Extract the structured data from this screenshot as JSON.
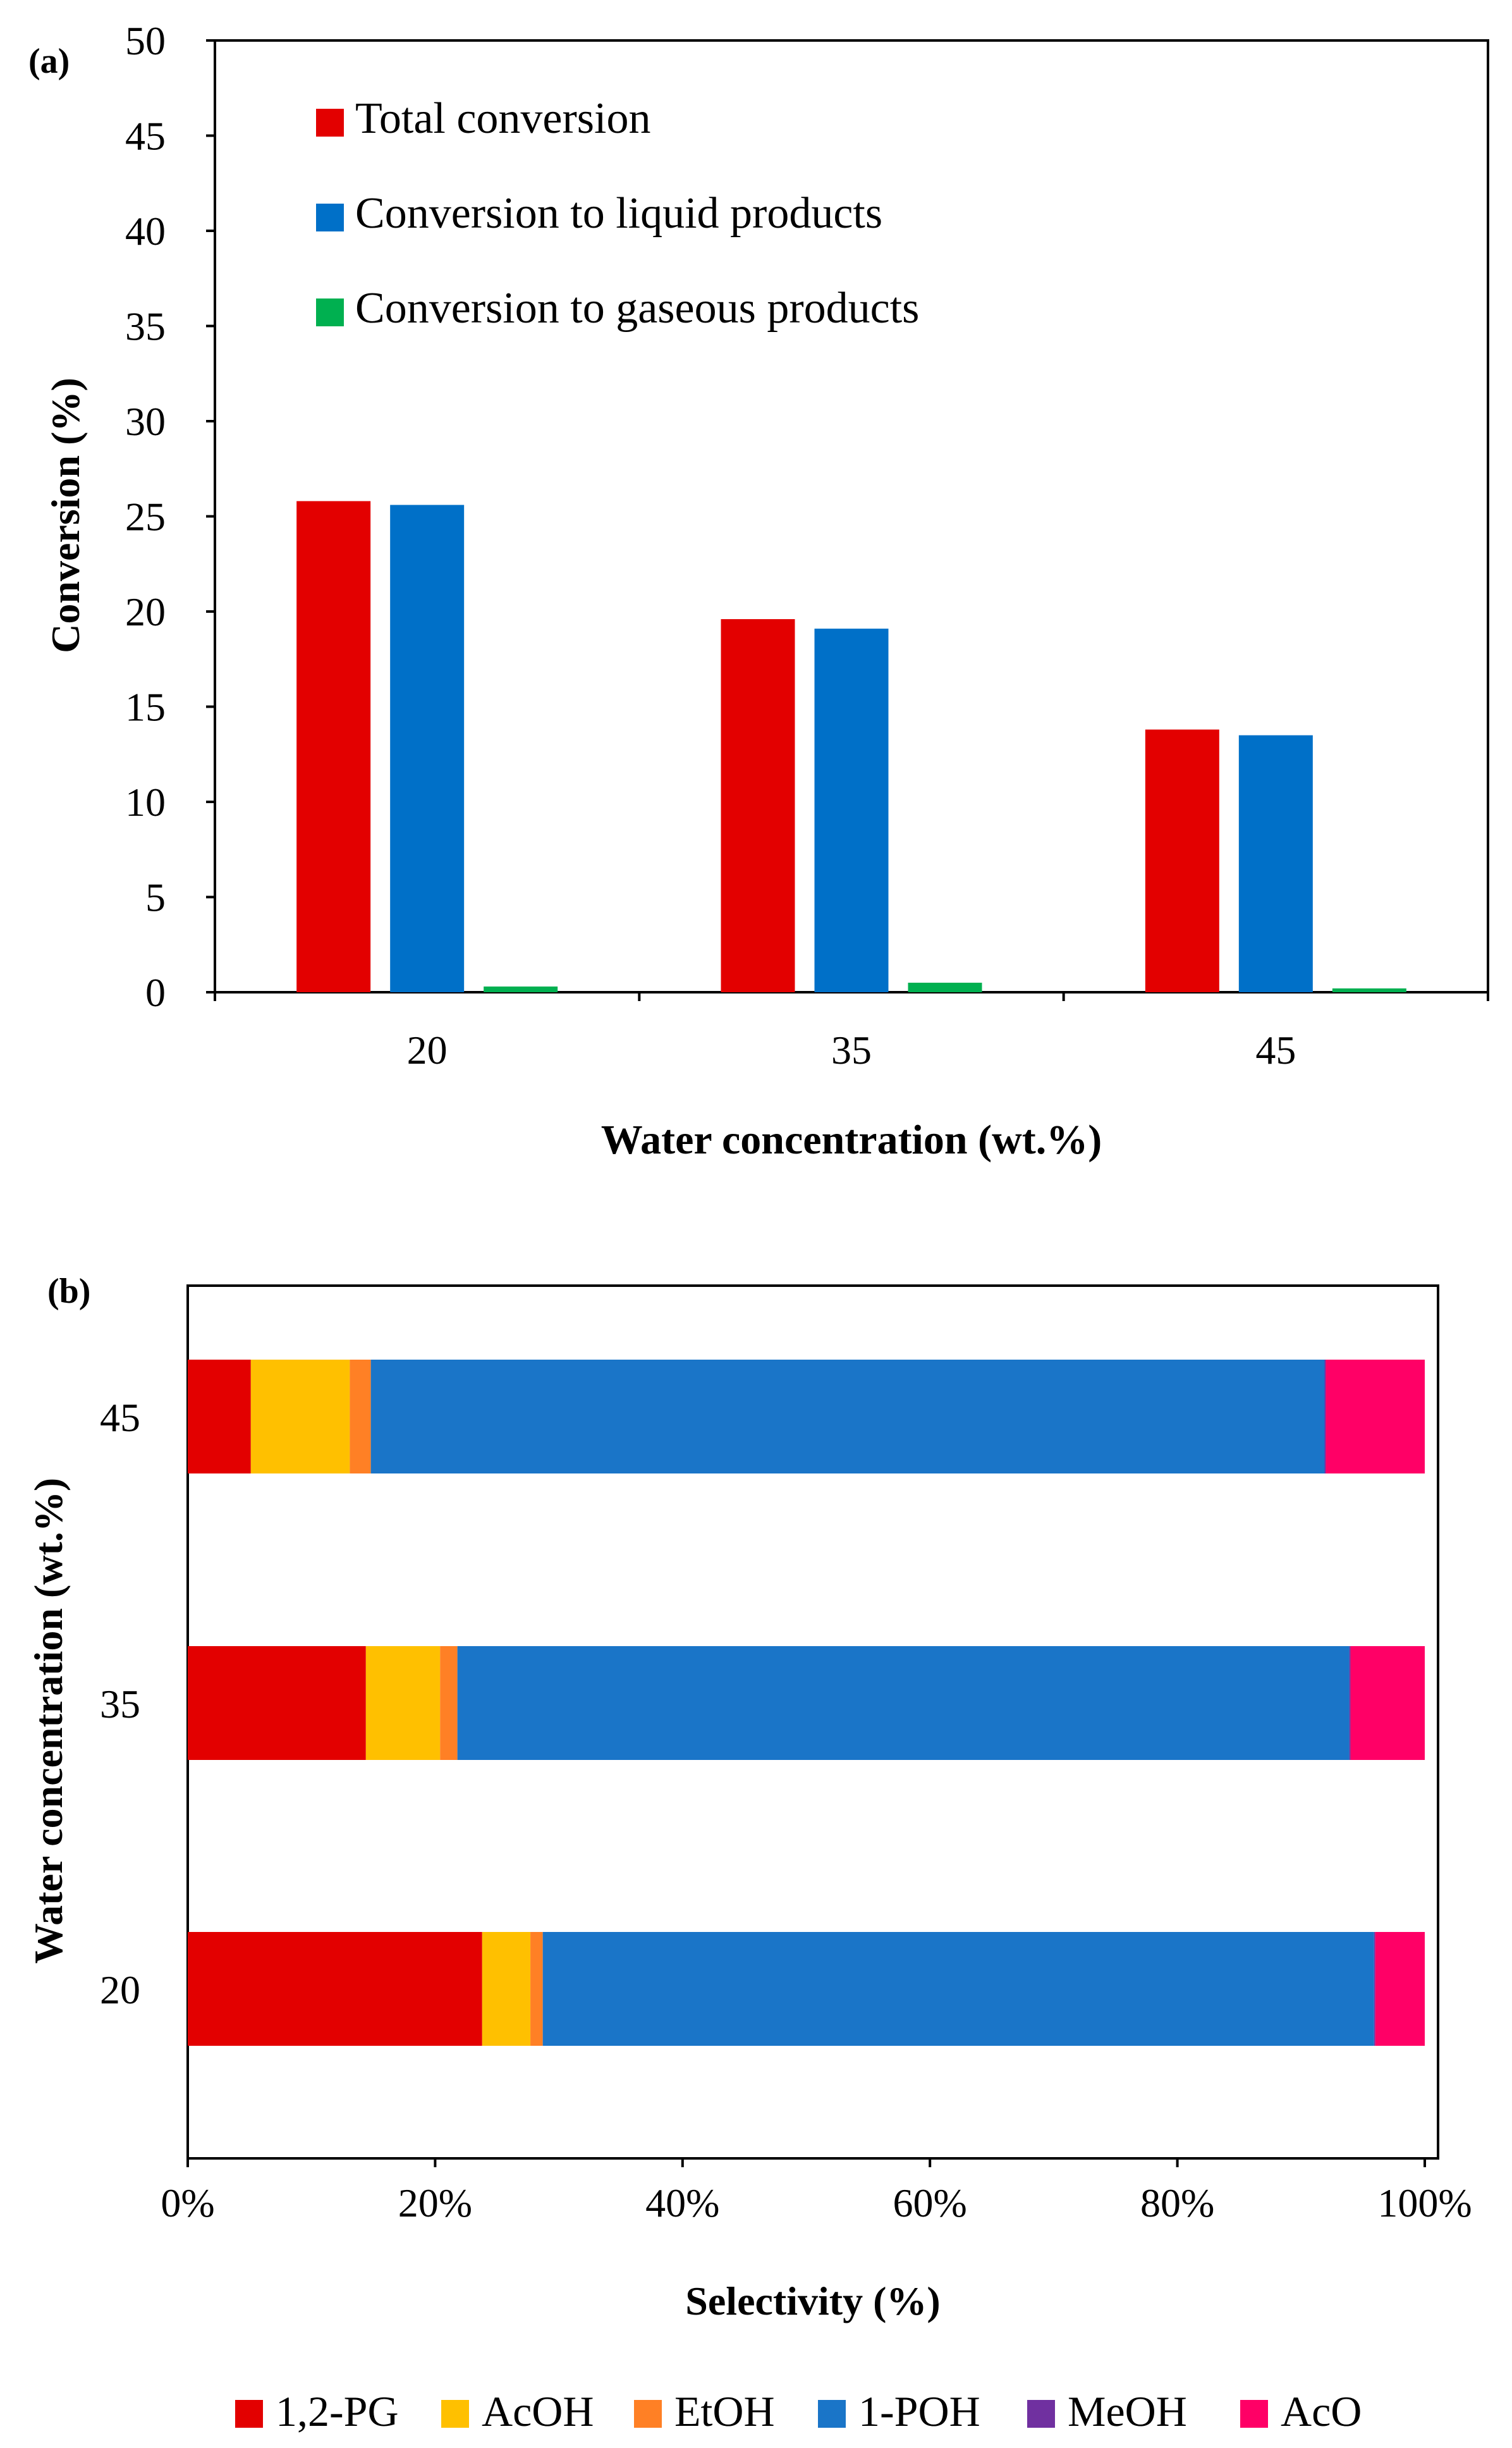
{
  "colors": {
    "red": "#E30000",
    "blue": "#0070C8",
    "green": "#00B050",
    "bar_blue": "#1A75C8",
    "yellow": "#FFC000",
    "orange": "#FF8025",
    "purple": "#7030A0",
    "magenta": "#FF0066"
  },
  "chart_data": [
    {
      "panel": "(a)",
      "type": "bar",
      "title": "",
      "xlabel": "Water concentration (wt.%)",
      "ylabel": "Conversion (%)",
      "ylim": [
        0,
        50
      ],
      "yticks": [
        "0",
        "5",
        "10",
        "15",
        "20",
        "25",
        "30",
        "35",
        "40",
        "45",
        "50"
      ],
      "categories": [
        "20",
        "35",
        "45"
      ],
      "legend_position": "top-left",
      "series": [
        {
          "name": "Total conversion",
          "color": "#E30000",
          "values": [
            25.8,
            19.6,
            13.8
          ]
        },
        {
          "name": "Conversion to liquid products",
          "color": "#0070C8",
          "values": [
            25.6,
            19.1,
            13.5
          ]
        },
        {
          "name": "Conversion to gaseous products",
          "color": "#00B050",
          "values": [
            0.3,
            0.5,
            0.2
          ]
        }
      ]
    },
    {
      "panel": "(b)",
      "type": "bar",
      "orientation": "horizontal",
      "stacked": "percent",
      "title": "",
      "xlabel": "Selectivity (%)",
      "ylabel": "Water concentration (wt.%)",
      "xlim": [
        0,
        100
      ],
      "xticks": [
        "0%",
        "20%",
        "40%",
        "60%",
        "80%",
        "100%"
      ],
      "categories": [
        "20",
        "35",
        "45"
      ],
      "legend_position": "bottom",
      "series": [
        {
          "name": "1,2-PG",
          "color": "#E30000",
          "values": [
            23.8,
            14.4,
            5.1
          ]
        },
        {
          "name": "AcOH",
          "color": "#FFC000",
          "values": [
            3.9,
            6.0,
            8.0
          ]
        },
        {
          "name": "EtOH",
          "color": "#FF8025",
          "values": [
            1.0,
            1.4,
            1.7
          ]
        },
        {
          "name": "1-POH",
          "color": "#1A75C8",
          "values": [
            67.2,
            72.1,
            77.1
          ]
        },
        {
          "name": "MeOH",
          "color": "#7030A0",
          "values": [
            0.1,
            0.1,
            0.1
          ]
        },
        {
          "name": "AcO",
          "color": "#FF0066",
          "values": [
            4.0,
            6.0,
            8.0
          ]
        }
      ]
    }
  ]
}
